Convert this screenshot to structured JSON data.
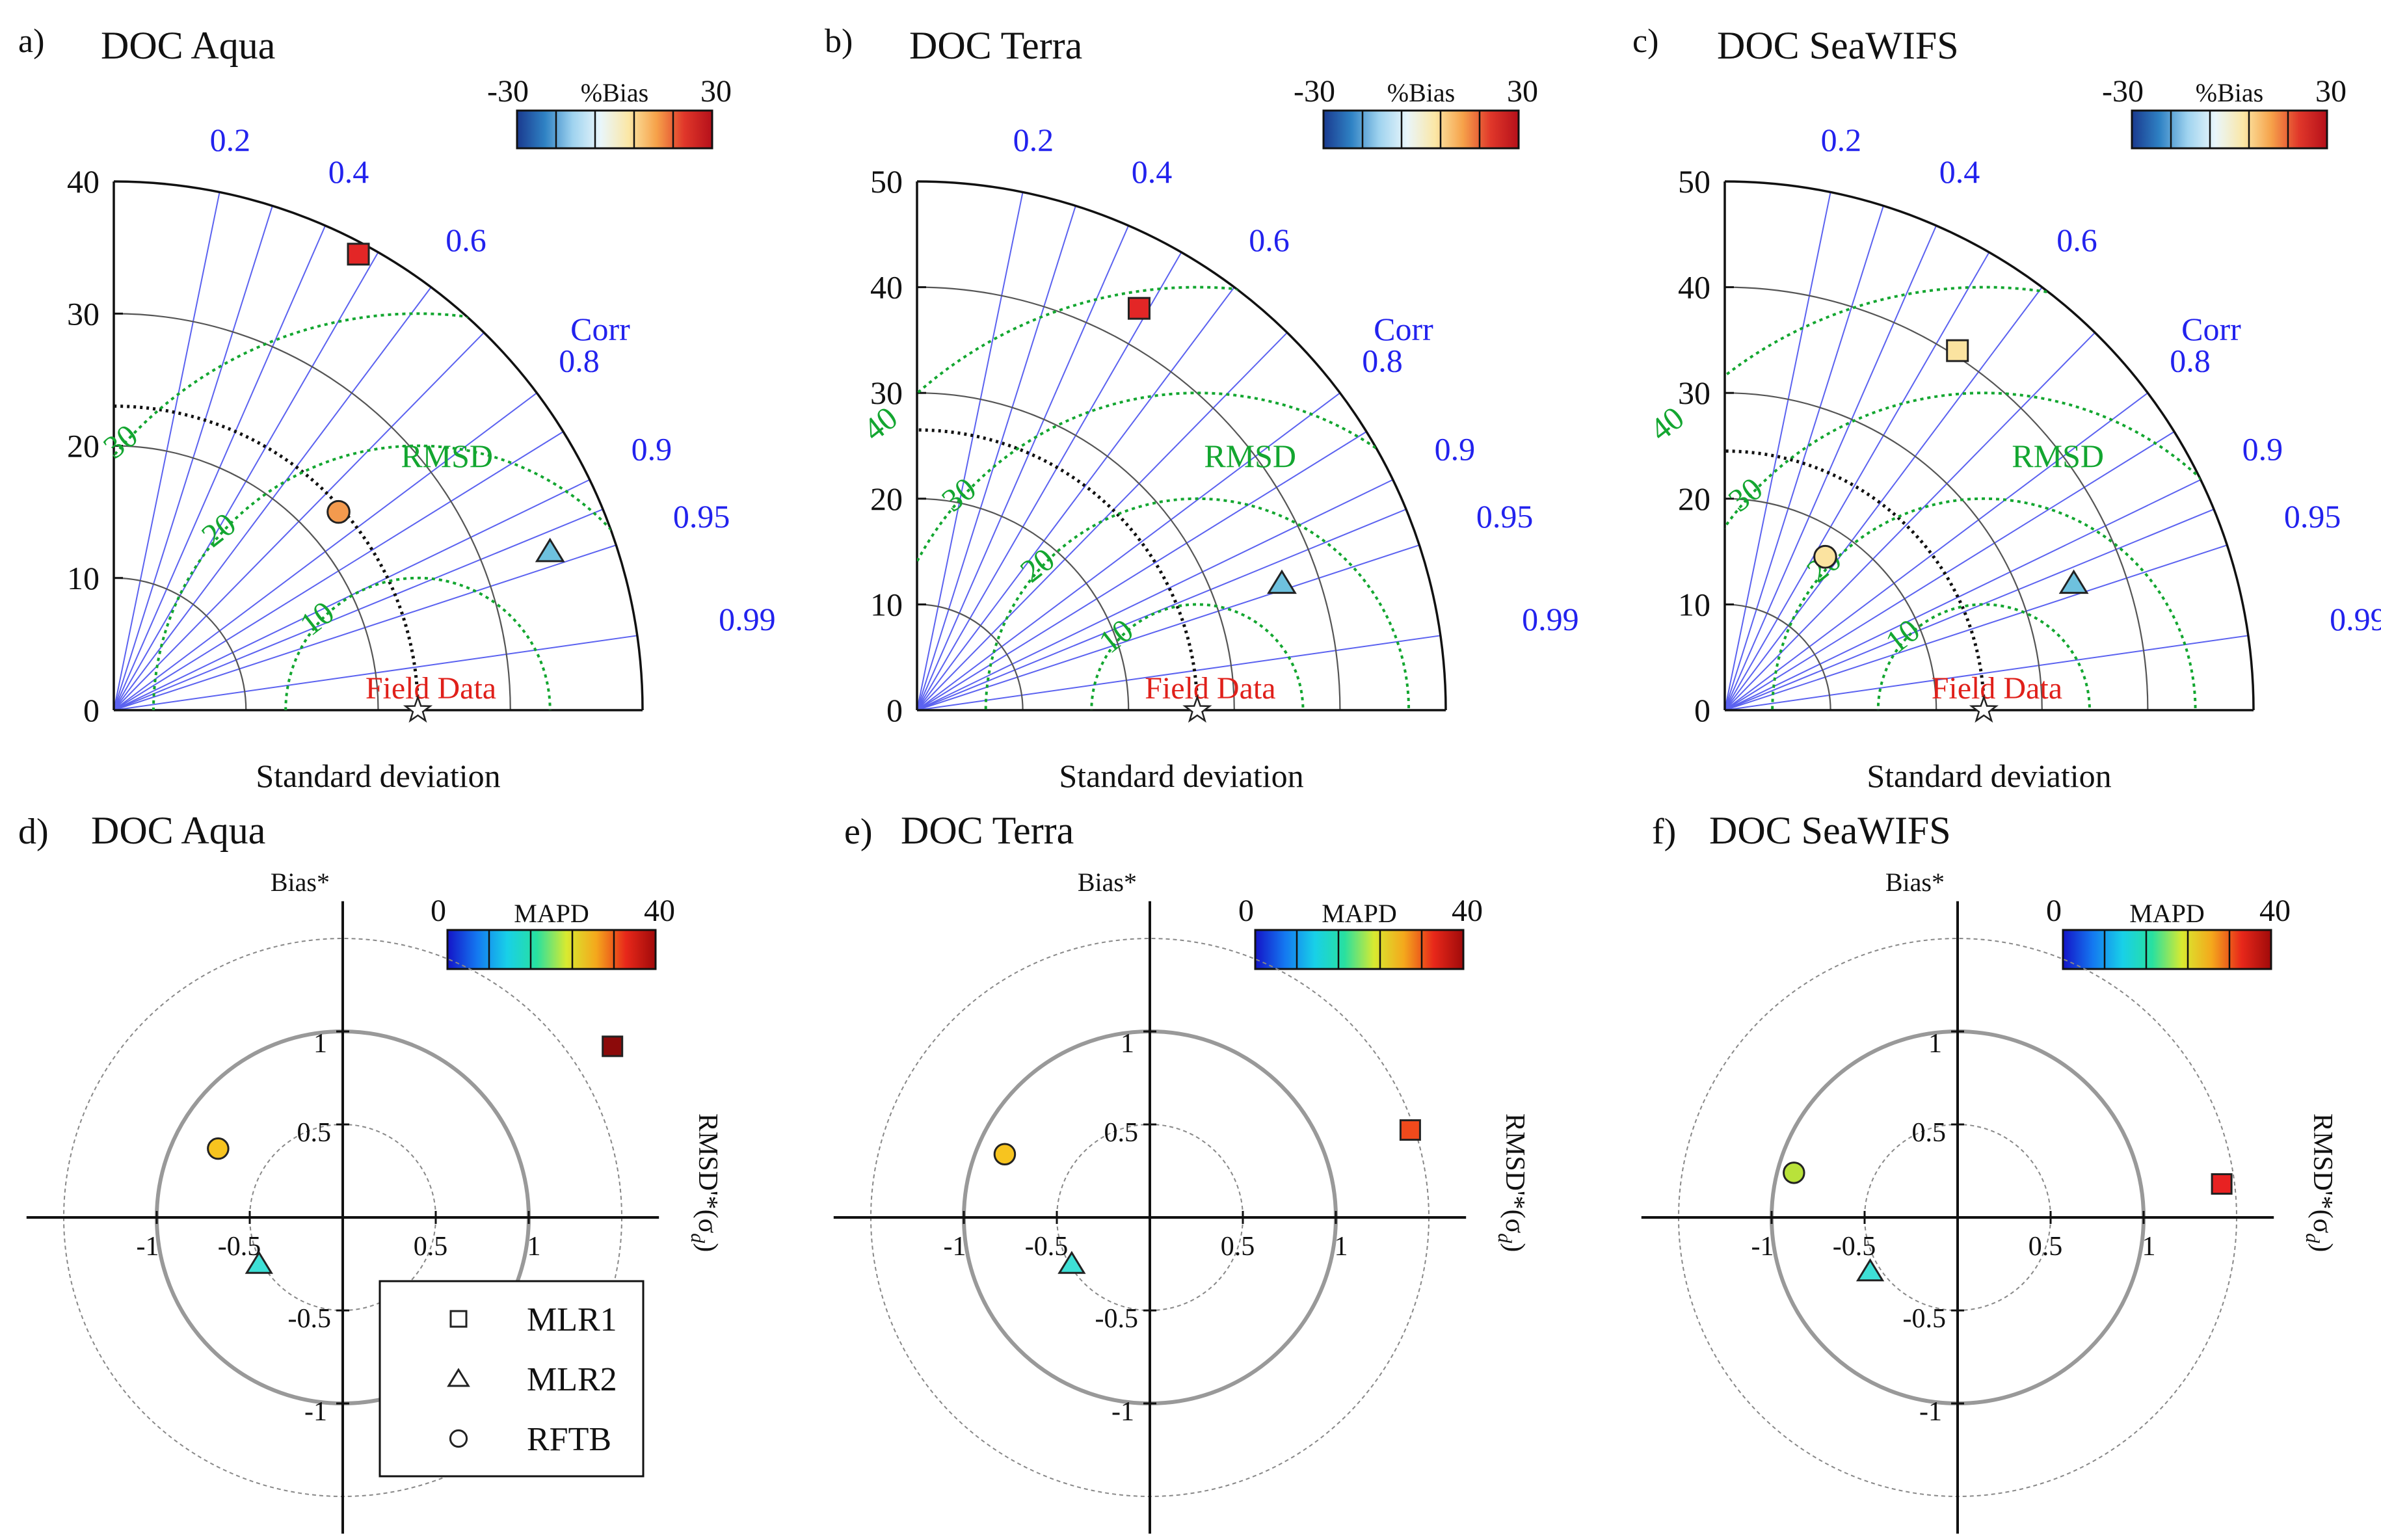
{
  "chart_data": [
    {
      "type": "taylor",
      "panel": "a)",
      "title": "DOC Aqua",
      "max_std": 40,
      "std_ticks": [
        0,
        10,
        20,
        30,
        40
      ],
      "xlabel": "Standard deviation",
      "corr_label": "Corr",
      "corr_ticks": [
        "0.2",
        "0.4",
        "0.6",
        "0.8",
        "0.9",
        "0.95",
        "0.99"
      ],
      "rmsd_label": "RMSD",
      "rmsd_ticks": [
        "10",
        "20",
        "30"
      ],
      "reference_label": "Field Data",
      "reference_std": 23,
      "colorbar": {
        "label": "%Bias",
        "min": "-30",
        "max": "30"
      },
      "points": [
        {
          "model": "MLR1",
          "x": 18.5,
          "y": 34.5,
          "color": "#e32626"
        },
        {
          "model": "MLR2",
          "x": 33,
          "y": 12,
          "color": "#6ec1de"
        },
        {
          "model": "RFTB",
          "x": 17,
          "y": 15,
          "color": "#f39a4e"
        }
      ]
    },
    {
      "type": "taylor",
      "panel": "b)",
      "title": "DOC Terra",
      "max_std": 50,
      "std_ticks": [
        0,
        10,
        20,
        30,
        40,
        50
      ],
      "xlabel": "Standard deviation",
      "corr_label": "Corr",
      "corr_ticks": [
        "0.2",
        "0.4",
        "0.6",
        "0.8",
        "0.9",
        "0.95",
        "0.99"
      ],
      "rmsd_label": "RMSD",
      "rmsd_ticks": [
        "10",
        "20",
        "30",
        "40"
      ],
      "reference_label": "Field Data",
      "reference_std": 26.5,
      "colorbar": {
        "label": "%Bias",
        "min": "-30",
        "max": "30"
      },
      "points": [
        {
          "model": "MLR1",
          "x": 21,
          "y": 38,
          "color": "#e32626"
        },
        {
          "model": "MLR2",
          "x": 34.5,
          "y": 12,
          "color": "#6ec1de"
        }
      ]
    },
    {
      "type": "taylor",
      "panel": "c)",
      "title": "DOC SeaWIFS",
      "max_std": 50,
      "std_ticks": [
        0,
        10,
        20,
        30,
        40,
        50
      ],
      "xlabel": "Standard deviation",
      "corr_label": "Corr",
      "corr_ticks": [
        "0.2",
        "0.4",
        "0.6",
        "0.8",
        "0.9",
        "0.95",
        "0.99"
      ],
      "rmsd_label": "RMSD",
      "rmsd_ticks": [
        "10",
        "20",
        "30",
        "40"
      ],
      "reference_label": "Field Data",
      "reference_std": 24.5,
      "colorbar": {
        "label": "%Bias",
        "min": "-30",
        "max": "30"
      },
      "points": [
        {
          "model": "MLR1",
          "x": 22,
          "y": 34,
          "color": "#fbe3a0"
        },
        {
          "model": "MLR2",
          "x": 33,
          "y": 12,
          "color": "#6ec1de"
        },
        {
          "model": "RFTB",
          "x": 9.5,
          "y": 14.5,
          "color": "#fbe3a0"
        }
      ]
    },
    {
      "type": "target",
      "panel": "d)",
      "title": "DOC Aqua",
      "ylabel": "Bias*",
      "xlabel": "RMSD'*(σ",
      "xlabel_sub": "d",
      "xlabel_end": ")",
      "tick_labels": {
        "neg1": "-1",
        "neghalf": "-0.5",
        "half": "0.5",
        "one": "1"
      },
      "colorbar": {
        "label": "MAPD",
        "min": "0",
        "max": "40"
      },
      "points": [
        {
          "model": "MLR1",
          "x": 1.45,
          "y": 0.92,
          "color": "#8c0a0a"
        },
        {
          "model": "MLR2",
          "x": -0.45,
          "y": -0.25,
          "color": "#3ee0d6"
        },
        {
          "model": "RFTB",
          "x": -0.67,
          "y": 0.37,
          "color": "#f7c41f"
        }
      ],
      "legend": [
        "MLR1",
        "MLR2",
        "RFTB"
      ]
    },
    {
      "type": "target",
      "panel": "e)",
      "title": "DOC Terra",
      "ylabel": "Bias*",
      "xlabel": "RMSD'*(σ",
      "xlabel_sub": "d",
      "xlabel_end": ")",
      "tick_labels": {
        "neg1": "-1",
        "neghalf": "-0.5",
        "half": "0.5",
        "one": "1"
      },
      "colorbar": {
        "label": "MAPD",
        "min": "0",
        "max": "40"
      },
      "points": [
        {
          "model": "MLR1",
          "x": 1.4,
          "y": 0.47,
          "color": "#f04a1c"
        },
        {
          "model": "MLR2",
          "x": -0.42,
          "y": -0.25,
          "color": "#3ee0d6"
        },
        {
          "model": "RFTB",
          "x": -0.78,
          "y": 0.34,
          "color": "#f7c41f"
        }
      ]
    },
    {
      "type": "target",
      "panel": "f)",
      "title": "DOC SeaWIFS",
      "ylabel": "Bias*",
      "xlabel": "RMSD'*(σ",
      "xlabel_sub": "d",
      "xlabel_end": ")",
      "tick_labels": {
        "neg1": "-1",
        "neghalf": "-0.5",
        "half": "0.5",
        "one": "1"
      },
      "colorbar": {
        "label": "MAPD",
        "min": "0",
        "max": "40"
      },
      "points": [
        {
          "model": "MLR1",
          "x": 1.42,
          "y": 0.18,
          "color": "#e82222"
        },
        {
          "model": "MLR2",
          "x": -0.47,
          "y": -0.29,
          "color": "#3ee0d6"
        },
        {
          "model": "RFTB",
          "x": -0.88,
          "y": 0.24,
          "color": "#b9e23a"
        }
      ]
    }
  ]
}
